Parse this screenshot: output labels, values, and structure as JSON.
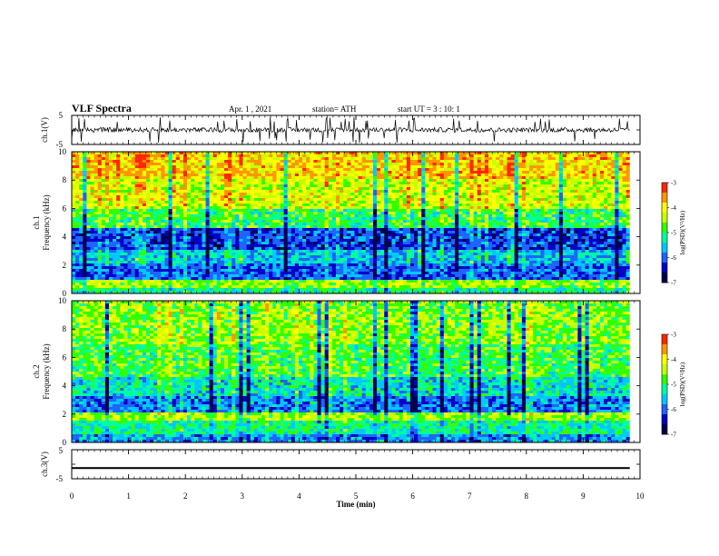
{
  "header": {
    "title": "VLF Spectra",
    "date": "Apr. 1 , 2021",
    "station": "station= ATH",
    "start": "start UT =  3 : 10: 1"
  },
  "colors": {
    "colormap": [
      "#00004a",
      "#0000c8",
      "#1e64ff",
      "#00c8ff",
      "#00ffa0",
      "#32ff00",
      "#c8ff00",
      "#ffff00",
      "#ff9600",
      "#ff2800",
      "#ffffff"
    ],
    "trace": "#000000",
    "axes": "#000000"
  },
  "chart_data": [
    {
      "type": "line",
      "panel": "ch1-waveform",
      "ylabel": "ch.1(V)",
      "ylim": [
        -5,
        5
      ],
      "yticks": [
        "5",
        "-5"
      ],
      "xlim": [
        0,
        10
      ],
      "description_values": {
        "baseline_v": 0.0,
        "noise_amplitude_v": 0.8,
        "spike_amplitude_v": 4.5,
        "trace_end_min": 9.82
      }
    },
    {
      "type": "heatmap",
      "panel": "ch1-spectrogram",
      "ylabel": "ch.1\nFrequency (kHz)",
      "ylim": [
        0,
        10
      ],
      "yticks": [
        "0",
        "2",
        "4",
        "6",
        "8",
        "10"
      ],
      "xlim": [
        0,
        9.82
      ],
      "colorbar": {
        "label": "log(PSD)(V²/Hz)",
        "range": [
          -7,
          -3
        ],
        "ticks": [
          "-3",
          "-4",
          "-5",
          "-6",
          "-7"
        ]
      },
      "bands_khz": [
        {
          "from": 0.0,
          "to": 0.3,
          "level": -5.2
        },
        {
          "from": 0.3,
          "to": 1.0,
          "level": -4.6
        },
        {
          "from": 1.0,
          "to": 2.2,
          "level": -6.0
        },
        {
          "from": 2.2,
          "to": 3.0,
          "level": -5.6
        },
        {
          "from": 3.0,
          "to": 4.6,
          "level": -6.2
        },
        {
          "from": 4.6,
          "to": 6.0,
          "level": -5.0
        },
        {
          "from": 6.0,
          "to": 8.0,
          "level": -4.3
        },
        {
          "from": 8.0,
          "to": 10.0,
          "level": -3.9
        }
      ]
    },
    {
      "type": "heatmap",
      "panel": "ch2-spectrogram",
      "ylabel": "ch.2\nFrequency (kHz)",
      "ylim": [
        0,
        10
      ],
      "yticks": [
        "0",
        "2",
        "4",
        "6",
        "8",
        "10"
      ],
      "xlim": [
        0,
        9.82
      ],
      "colorbar": {
        "label": "log(PSD)(V²/Hz)",
        "range": [
          -7,
          -3
        ],
        "ticks": [
          "-3",
          "-4",
          "-5",
          "-6",
          "-7"
        ]
      },
      "bands_khz": [
        {
          "from": 0.0,
          "to": 0.5,
          "level": -5.8
        },
        {
          "from": 0.5,
          "to": 1.6,
          "level": -5.2
        },
        {
          "from": 1.6,
          "to": 2.2,
          "level": -4.5
        },
        {
          "from": 2.2,
          "to": 3.2,
          "level": -5.9
        },
        {
          "from": 3.2,
          "to": 4.6,
          "level": -5.4
        },
        {
          "from": 4.6,
          "to": 7.0,
          "level": -4.9
        },
        {
          "from": 7.0,
          "to": 10.0,
          "level": -4.6
        }
      ]
    },
    {
      "type": "line",
      "panel": "ch3-waveform",
      "ylabel": "ch.3(V)",
      "ylim": [
        -5,
        5
      ],
      "yticks": [
        "5",
        "-5"
      ],
      "xlim": [
        0,
        10
      ],
      "xlabel": "Time (min)",
      "xticks": [
        "0",
        "1",
        "2",
        "3",
        "4",
        "5",
        "6",
        "7",
        "8",
        "9",
        "10"
      ],
      "description_values": {
        "baseline_v": -1.3,
        "thickness_v": 0.6,
        "trace_end_min": 9.82
      }
    }
  ]
}
